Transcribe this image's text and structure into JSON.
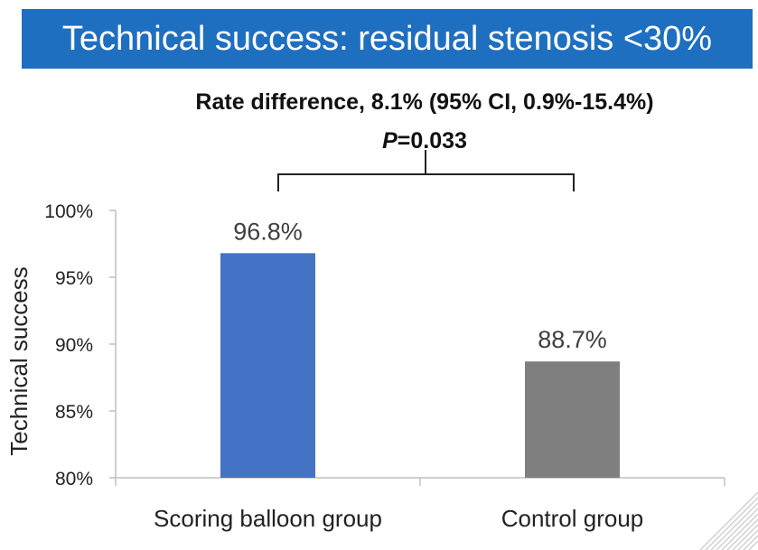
{
  "banner": {
    "title": "Technical success: residual stenosis <30%"
  },
  "comparison": {
    "rate_difference": "Rate difference, 8.1% (95% CI, 0.9%-15.4%)",
    "p_label": "P",
    "p_value": "=0.033"
  },
  "chart_data": {
    "type": "bar",
    "categories": [
      "Scoring balloon group",
      "Control group"
    ],
    "values": [
      96.8,
      88.7
    ],
    "value_labels": [
      "96.8%",
      "88.7%"
    ],
    "bar_colors": [
      "#4472c4",
      "#7f7f7f"
    ],
    "title": "",
    "xlabel": "",
    "ylabel": "Technical success",
    "ylim": [
      80,
      100
    ],
    "yticks": [
      80,
      85,
      90,
      95,
      100
    ],
    "ytick_labels": [
      "80%",
      "85%",
      "90%",
      "95%",
      "100%"
    ],
    "grid": false,
    "legend": "none"
  }
}
